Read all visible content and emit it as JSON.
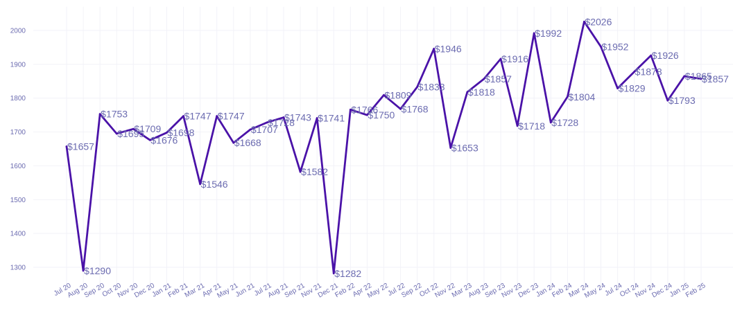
{
  "chart_data": {
    "type": "line",
    "title": "",
    "xlabel": "",
    "ylabel": "",
    "ylim": [
      1230,
      2070
    ],
    "yticks": [
      1300,
      1400,
      1500,
      1600,
      1700,
      1800,
      1900,
      2000
    ],
    "grid": true,
    "legend": "none",
    "series": [
      {
        "values": [
          1657,
          1290,
          1753,
          1695,
          1709,
          1676,
          1698,
          1747,
          1546,
          1747,
          1668,
          1707,
          1728,
          1743,
          1582,
          1741,
          1282,
          1766,
          1750,
          1809,
          1768,
          1833,
          1946,
          1653,
          1818,
          1857,
          1916,
          1718,
          1992,
          1728,
          1804,
          2026,
          1952,
          1829,
          1878,
          1926,
          1793,
          1865,
          1857
        ]
      }
    ],
    "x_tick_labels": [
      "Jul 20",
      "Aug 20",
      "Sep 20",
      "Oct 20",
      "Nov 20",
      "Dec 20",
      "Jan 21",
      "Feb 21",
      "Mar 21",
      "Apr 21",
      "May 21",
      "Jun 21",
      "Jul 21",
      "Aug 21",
      "Sep 21",
      "Nov 21",
      "Dec 21",
      "Feb 22",
      "Apr 22",
      "May 22",
      "Jul 22",
      "Sep 22",
      "Oct 22",
      "Nov 22",
      "Mar 23",
      "Aug 23",
      "Sep 23",
      "Nov 23",
      "Dec 23",
      "Jan 24",
      "Feb 24",
      "Mar 24",
      "May 24",
      "Jul 24",
      "Oct 24",
      "Nov 24",
      "Dec 24",
      "Jan 25",
      "Feb 25"
    ],
    "data_labels": [
      "$1657",
      "$1290",
      "$1753",
      "$1695",
      "$1709",
      "$1676",
      "$1698",
      "$1747",
      "$1546",
      "$1747",
      "$1668",
      "$1707",
      "$1728",
      "$1743",
      "$1582",
      "$1741",
      "$1282",
      "$1766",
      "$1750",
      "$1809",
      "$1768",
      "$1833",
      "$1946",
      "$1653",
      "$1818",
      "$1857",
      "$1916",
      "$1718",
      "$1992",
      "$1728",
      "$1804",
      "$2026",
      "$1952",
      "$1829",
      "$1878",
      "$1926",
      "$1793",
      "$1865",
      "$1857"
    ]
  },
  "colors": {
    "line": "#4a12a8",
    "tick_text": "#6b6bb0",
    "label_text": "#6b6bb0",
    "grid": "#f2f2f8"
  }
}
